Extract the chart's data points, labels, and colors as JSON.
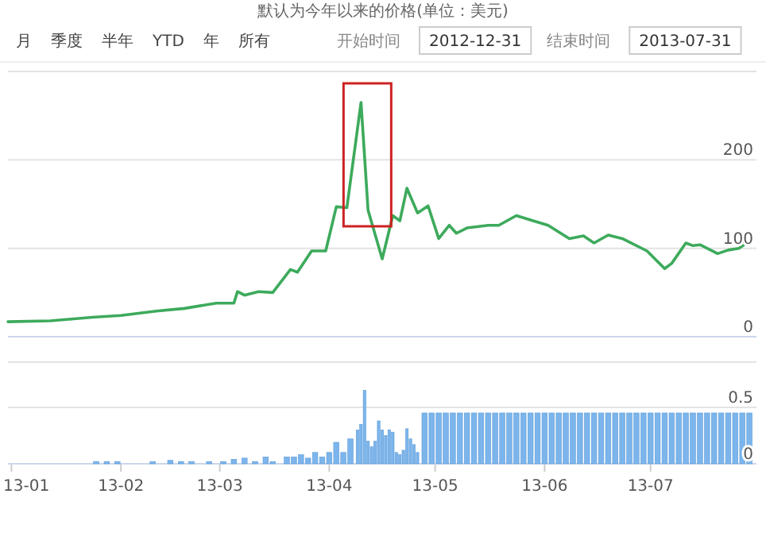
{
  "chart_data": [
    {
      "type": "line",
      "title": "默认为今年以来的价格(单位：美元)",
      "annotations": [
        "月",
        "季度",
        "半年",
        "YTD",
        "年",
        "所有",
        "开始时间",
        "2012-12-31",
        "结束时间",
        "2013-07-31"
      ],
      "x": [
        "2012-12-31",
        "2013-01-12",
        "2013-01-24",
        "2013-02-01",
        "2013-02-11",
        "2013-02-19",
        "2013-02-28",
        "2013-03-05",
        "2013-03-06",
        "2013-03-08",
        "2013-03-12",
        "2013-03-16",
        "2013-03-21",
        "2013-03-23",
        "2013-03-27",
        "2013-03-31",
        "2013-04-03",
        "2013-04-06",
        "2013-04-10",
        "2013-04-12",
        "2013-04-16",
        "2013-04-19",
        "2013-04-21",
        "2013-04-23",
        "2013-04-26",
        "2013-04-29",
        "2013-05-02",
        "2013-05-05",
        "2013-05-07",
        "2013-05-10",
        "2013-05-16",
        "2013-05-19",
        "2013-05-24",
        "2013-05-28",
        "2013-06-02",
        "2013-06-08",
        "2013-06-12",
        "2013-06-15",
        "2013-06-19",
        "2013-06-23",
        "2013-06-30",
        "2013-07-05",
        "2013-07-07",
        "2013-07-11",
        "2013-07-13",
        "2013-07-15",
        "2013-07-20",
        "2013-07-23",
        "2013-07-26",
        "2013-07-30"
      ],
      "values": [
        17,
        18,
        22,
        24,
        29,
        32,
        38,
        38,
        51,
        47,
        51,
        50,
        76,
        73,
        97,
        97,
        147,
        146,
        265,
        143,
        88,
        137,
        131,
        168,
        140,
        148,
        111,
        126,
        117,
        123,
        126,
        126,
        137,
        132,
        126,
        111,
        114,
        106,
        115,
        111,
        97,
        77,
        83,
        106,
        103,
        104,
        94,
        98,
        100,
        111
      ],
      "color": "#3daa5c",
      "xlim": [
        "2012-12-31",
        "2013-07-31"
      ],
      "ylim": [
        0,
        300
      ],
      "yticks": [
        0,
        100,
        200,
        {
          "value": 300,
          "label": null
        }
      ],
      "grid": "y",
      "tick_labels": "y"
    },
    {
      "type": "bar",
      "x": [
        "2013-01-25",
        "2013-01-28",
        "2013-01-31",
        "2013-02-10",
        "2013-02-15",
        "2013-02-18",
        "2013-02-21",
        "2013-02-26",
        "2013-03-02",
        "2013-03-05",
        "2013-03-08",
        "2013-03-11",
        "2013-03-14",
        "2013-03-16",
        "2013-03-20",
        "2013-03-22",
        "2013-03-24",
        "2013-03-26",
        "2013-03-28",
        "2013-03-30",
        "2013-04-01",
        "2013-04-03",
        "2013-04-05",
        "2013-04-07",
        "2013-04-09",
        "2013-04-10",
        "2013-04-11",
        "2013-04-12",
        "2013-04-13",
        "2013-04-14",
        "2013-04-15",
        "2013-04-16",
        "2013-04-17",
        "2013-04-18",
        "2013-04-19",
        "2013-04-20",
        "2013-04-21",
        "2013-04-22",
        "2013-04-23",
        "2013-04-24",
        "2013-04-25",
        "2013-04-26",
        "2013-04-28",
        "2013-04-30",
        "2013-05-02",
        "2013-05-04",
        "2013-05-06",
        "2013-05-08",
        "2013-05-10",
        "2013-05-12",
        "2013-05-14",
        "2013-05-16",
        "2013-05-18",
        "2013-05-20",
        "2013-05-22",
        "2013-05-24",
        "2013-05-26",
        "2013-05-28",
        "2013-05-30",
        "2013-06-01",
        "2013-06-03",
        "2013-06-05",
        "2013-06-07",
        "2013-06-09",
        "2013-06-11",
        "2013-06-13",
        "2013-06-15",
        "2013-06-17",
        "2013-06-19",
        "2013-06-21",
        "2013-06-23",
        "2013-06-25",
        "2013-06-27",
        "2013-06-29",
        "2013-07-01",
        "2013-07-03",
        "2013-07-05",
        "2013-07-07",
        "2013-07-09",
        "2013-07-11",
        "2013-07-13",
        "2013-07-15",
        "2013-07-17",
        "2013-07-19",
        "2013-07-21",
        "2013-07-23",
        "2013-07-25",
        "2013-07-27",
        "2013-07-29"
      ],
      "values": [
        0.02,
        0.02,
        0.02,
        0.02,
        0.03,
        0.02,
        0.02,
        0.02,
        0.02,
        0.04,
        0.05,
        0.02,
        0.06,
        0.02,
        0.06,
        0.06,
        0.08,
        0.05,
        0.1,
        0.06,
        0.1,
        0.19,
        0.1,
        0.22,
        0.3,
        0.35,
        0.65,
        0.2,
        0.15,
        0.2,
        0.38,
        0.3,
        0.25,
        0.3,
        0.28,
        0.1,
        0.08,
        0.12,
        0.31,
        0.22,
        0.17,
        0.1,
        0.45,
        0.45,
        0.45,
        0.45,
        0.45,
        0.45,
        0.45,
        0.45,
        0.45,
        0.45,
        0.45,
        0.45,
        0.45,
        0.45,
        0.45,
        0.45,
        0.45,
        0.45,
        0.45,
        0.45,
        0.45,
        0.45,
        0.45,
        0.45,
        0.45,
        0.45,
        0.45,
        0.45,
        0.45,
        0.45,
        0.45,
        0.45,
        0.45,
        0.45,
        0.45,
        0.45,
        0.45,
        0.45,
        0.45,
        0.45,
        0.45,
        0.45,
        0.45,
        0.45,
        0.45,
        0.45,
        0.45
      ],
      "color": "#7cb5ec",
      "xlim": [
        "2012-12-31",
        "2013-07-31"
      ],
      "xticks": [
        {
          "value": "2013-01-01",
          "label": "13-01"
        },
        {
          "value": "2013-02-01",
          "label": "13-02"
        },
        {
          "value": "2013-03-01",
          "label": "13-03"
        },
        {
          "value": "2013-04-01",
          "label": "13-04"
        },
        {
          "value": "2013-05-01",
          "label": "13-05"
        },
        {
          "value": "2013-06-01",
          "label": "13-06"
        },
        {
          "value": "2013-07-01",
          "label": "13-07"
        }
      ],
      "ylim": [
        0,
        0.9
      ],
      "yticks": [
        0,
        0.5
      ],
      "grid": "y"
    }
  ]
}
